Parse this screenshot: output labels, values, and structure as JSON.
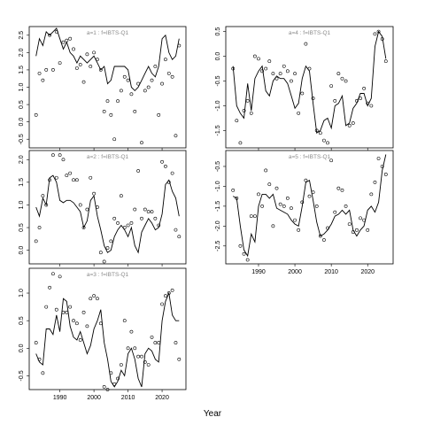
{
  "figure": {
    "xlabel": "Year"
  },
  "chart_data": [
    {
      "type": "line",
      "title": "a=1 : f=IBTS-Q1",
      "xlim": [
        1981,
        2027
      ],
      "ylim": [
        -0.75,
        2.75
      ],
      "x_ticks": [
        1990,
        2000,
        2010,
        2020
      ],
      "y_ticks": [
        -0.5,
        0.0,
        0.5,
        1.0,
        1.5,
        2.0,
        2.5
      ],
      "y_tick_labels": [
        "-0.5",
        "0.0",
        "0.5",
        "1.0",
        "1.5",
        "2.0",
        "2.5"
      ],
      "series": [
        {
          "style": "line",
          "x": [
            1983,
            1984,
            1985,
            1986,
            1987,
            1988,
            1989,
            1990,
            1991,
            1992,
            1993,
            1994,
            1995,
            1996,
            1997,
            1998,
            1999,
            2000,
            2001,
            2002,
            2003,
            2004,
            2005,
            2006,
            2007,
            2008,
            2009,
            2010,
            2011,
            2012,
            2013,
            2014,
            2015,
            2016,
            2017,
            2018,
            2019,
            2020,
            2021,
            2022,
            2023,
            2024,
            2025
          ],
          "y": [
            1.9,
            2.4,
            2.2,
            2.6,
            2.5,
            2.6,
            2.7,
            2.4,
            2.1,
            2.3,
            2.0,
            1.9,
            1.7,
            1.9,
            1.8,
            1.7,
            1.8,
            1.9,
            1.7,
            1.5,
            1.6,
            1.1,
            1.2,
            1.6,
            1.6,
            1.6,
            1.6,
            1.5,
            1.0,
            0.9,
            1.0,
            1.2,
            1.4,
            1.6,
            1.4,
            1.3,
            1.6,
            2.4,
            2.5,
            2.0,
            1.8,
            1.9,
            2.4
          ]
        },
        {
          "style": "points",
          "x": [
            1983,
            1984,
            1985,
            1986,
            1987,
            1988,
            1989,
            1990,
            1991,
            1992,
            1993,
            1994,
            1995,
            1996,
            1997,
            1998,
            1999,
            2000,
            2001,
            2002,
            2003,
            2004,
            2005,
            2006,
            2007,
            2008,
            2009,
            2010,
            2011,
            2012,
            2013,
            2014,
            2015,
            2016,
            2017,
            2018,
            2019,
            2020,
            2021,
            2022,
            2023,
            2024,
            2025
          ],
          "y": [
            0.2,
            1.4,
            1.2,
            1.5,
            2.5,
            1.5,
            2.6,
            1.7,
            2.3,
            2.35,
            2.4,
            2.1,
            1.55,
            1.65,
            1.15,
            1.95,
            1.6,
            2.0,
            1.8,
            1.5,
            0.3,
            0.6,
            0.2,
            -0.5,
            0.6,
            0.9,
            1.3,
            1.2,
            0.8,
            0.3,
            1.1,
            -0.6,
            0.9,
            1.0,
            1.2,
            1.6,
            0.2,
            1.1,
            1.8,
            1.4,
            1.3,
            -0.4,
            2.2
          ]
        }
      ]
    },
    {
      "type": "line",
      "title": "a=2 : f=IBTS-Q1",
      "xlim": [
        1981,
        2027
      ],
      "ylim": [
        -0.3,
        2.2
      ],
      "x_ticks": [
        1990,
        2000,
        2010,
        2020
      ],
      "y_ticks": [
        0.0,
        0.5,
        1.0,
        1.5,
        2.0
      ],
      "y_tick_labels": [
        "0.0",
        "0.5",
        "1.0",
        "1.5",
        "2.0"
      ],
      "series": [
        {
          "style": "line",
          "x": [
            1983,
            1984,
            1985,
            1986,
            1987,
            1988,
            1989,
            1990,
            1991,
            1992,
            1993,
            1994,
            1995,
            1996,
            1997,
            1998,
            1999,
            2000,
            2001,
            2002,
            2003,
            2004,
            2005,
            2006,
            2007,
            2008,
            2009,
            2010,
            2011,
            2012,
            2013,
            2014,
            2015,
            2016,
            2017,
            2018,
            2019,
            2020,
            2021,
            2022,
            2023,
            2024,
            2025
          ],
          "y": [
            0.95,
            0.75,
            1.15,
            1.0,
            1.6,
            1.65,
            1.5,
            1.1,
            1.05,
            1.1,
            1.1,
            1.05,
            0.95,
            0.85,
            0.5,
            0.65,
            1.1,
            1.2,
            0.75,
            0.45,
            0.1,
            -0.05,
            0.0,
            0.3,
            0.45,
            0.55,
            0.45,
            0.3,
            0.5,
            0.1,
            -0.05,
            0.4,
            0.55,
            0.7,
            0.6,
            0.45,
            0.5,
            0.8,
            1.45,
            1.55,
            1.3,
            1.15,
            0.75
          ]
        },
        {
          "style": "points",
          "x": [
            1983,
            1984,
            1985,
            1986,
            1987,
            1988,
            1989,
            1990,
            1991,
            1992,
            1993,
            1994,
            1995,
            1996,
            1997,
            1998,
            1999,
            2000,
            2001,
            2002,
            2003,
            2004,
            2005,
            2006,
            2007,
            2008,
            2009,
            2010,
            2011,
            2012,
            2013,
            2014,
            2015,
            2016,
            2017,
            2018,
            2019,
            2020,
            2021,
            2022,
            2023,
            2024,
            2025
          ],
          "y": [
            0.2,
            0.5,
            1.2,
            1.0,
            1.55,
            2.1,
            1.6,
            2.1,
            2.0,
            1.65,
            1.7,
            1.55,
            1.55,
            1.0,
            0.5,
            0.9,
            1.6,
            1.25,
            0.95,
            -0.05,
            -0.25,
            0.05,
            0.2,
            0.7,
            0.6,
            1.2,
            0.5,
            0.55,
            0.6,
            0.9,
            1.75,
            0.7,
            0.9,
            0.85,
            0.85,
            0.7,
            0.55,
            1.95,
            1.85,
            1.5,
            1.7,
            0.45,
            0.3
          ]
        }
      ]
    },
    {
      "type": "line",
      "title": "a=3 : f=IBTS-Q1",
      "xlim": [
        1981,
        2027
      ],
      "ylim": [
        -0.75,
        1.45
      ],
      "x_ticks": [
        1990,
        2000,
        2010,
        2020
      ],
      "y_ticks": [
        -0.5,
        0.0,
        0.5,
        1.0
      ],
      "y_tick_labels": [
        "-0.5",
        "0.0",
        "0.5",
        "1.0"
      ],
      "series": [
        {
          "style": "line",
          "x": [
            1983,
            1984,
            1985,
            1986,
            1987,
            1988,
            1989,
            1990,
            1991,
            1992,
            1993,
            1994,
            1995,
            1996,
            1997,
            1998,
            1999,
            2000,
            2001,
            2002,
            2003,
            2004,
            2005,
            2006,
            2007,
            2008,
            2009,
            2010,
            2011,
            2012,
            2013,
            2014,
            2015,
            2016,
            2017,
            2018,
            2019,
            2020,
            2021,
            2022,
            2023,
            2024,
            2025
          ],
          "y": [
            -0.1,
            -0.25,
            -0.3,
            0.35,
            0.35,
            0.25,
            0.6,
            0.3,
            0.9,
            0.85,
            0.4,
            0.2,
            0.15,
            0.3,
            0.1,
            -0.1,
            0.05,
            0.35,
            0.5,
            0.7,
            0.1,
            -0.2,
            -0.6,
            -0.7,
            -0.6,
            -0.4,
            -0.5,
            -0.1,
            0.0,
            -0.2,
            -0.55,
            -0.7,
            -0.1,
            0.0,
            -0.05,
            -0.2,
            -0.25,
            0.5,
            0.85,
            1.0,
            0.6,
            0.5,
            0.5
          ]
        },
        {
          "style": "points",
          "x": [
            1983,
            1984,
            1985,
            1986,
            1987,
            1988,
            1989,
            1990,
            1991,
            1992,
            1993,
            1994,
            1995,
            1996,
            1997,
            1998,
            1999,
            2000,
            2001,
            2002,
            2003,
            2004,
            2005,
            2006,
            2007,
            2008,
            2009,
            2010,
            2011,
            2012,
            2013,
            2014,
            2015,
            2016,
            2017,
            2018,
            2019,
            2020,
            2021,
            2022,
            2023,
            2024,
            2025
          ],
          "y": [
            0.1,
            -0.2,
            -0.45,
            0.75,
            1.1,
            1.35,
            0.7,
            1.3,
            0.65,
            0.65,
            0.75,
            0.5,
            0.45,
            0.15,
            0.65,
            0.4,
            0.9,
            0.95,
            0.9,
            0.45,
            -0.7,
            -0.75,
            -0.45,
            -0.65,
            -0.55,
            -0.3,
            0.5,
            0.0,
            0.3,
            0.0,
            -0.15,
            -0.15,
            -0.25,
            -0.3,
            0.2,
            0.1,
            0.1,
            0.8,
            0.95,
            1.0,
            1.05,
            0.1,
            -0.2
          ]
        }
      ]
    },
    {
      "type": "line",
      "title": "a=4 : f=IBTS-Q1",
      "xlim": [
        1981,
        2027
      ],
      "ylim": [
        -1.85,
        0.6
      ],
      "x_ticks": [
        1990,
        2000,
        2010,
        2020
      ],
      "y_ticks": [
        -1.5,
        -1.0,
        -0.5,
        0.0,
        0.5
      ],
      "y_tick_labels": [
        "-1.5",
        "-1.0",
        "-0.5",
        "0.0",
        "0.5"
      ],
      "series": [
        {
          "style": "line",
          "x": [
            1983,
            1984,
            1985,
            1986,
            1987,
            1988,
            1989,
            1990,
            1991,
            1992,
            1993,
            1994,
            1995,
            1996,
            1997,
            1998,
            1999,
            2000,
            2001,
            2002,
            2003,
            2004,
            2005,
            2006,
            2007,
            2008,
            2009,
            2010,
            2011,
            2012,
            2013,
            2014,
            2015,
            2016,
            2017,
            2018,
            2019,
            2020,
            2021,
            2022,
            2023,
            2024,
            2025
          ],
          "y": [
            -0.2,
            -1.0,
            -1.15,
            -1.25,
            -0.55,
            -1.1,
            -0.45,
            -0.3,
            -0.2,
            -0.7,
            -0.8,
            -0.5,
            -0.4,
            -0.45,
            -0.45,
            -0.55,
            -0.8,
            -1.05,
            -0.95,
            -0.45,
            -0.2,
            -0.3,
            -0.95,
            -1.55,
            -1.5,
            -1.3,
            -1.25,
            -1.45,
            -1.0,
            -0.95,
            -0.8,
            -1.4,
            -1.35,
            -1.05,
            -0.95,
            -0.75,
            -0.75,
            -1.0,
            -0.85,
            0.2,
            0.5,
            0.4,
            -0.05
          ]
        },
        {
          "style": "points",
          "x": [
            1983,
            1984,
            1985,
            1986,
            1987,
            1988,
            1989,
            1990,
            1991,
            1992,
            1993,
            1994,
            1995,
            1996,
            1997,
            1998,
            1999,
            2000,
            2001,
            2002,
            2003,
            2004,
            2005,
            2006,
            2007,
            2008,
            2009,
            2010,
            2011,
            2012,
            2013,
            2014,
            2015,
            2016,
            2017,
            2018,
            2019,
            2020,
            2021,
            2022,
            2023,
            2024,
            2025
          ],
          "y": [
            -0.25,
            -1.3,
            -1.75,
            -1.1,
            -0.9,
            -1.15,
            0.0,
            -0.05,
            -0.3,
            -0.25,
            -0.1,
            -0.35,
            -0.45,
            -0.35,
            -0.2,
            -0.3,
            -0.5,
            -0.35,
            -1.15,
            -0.75,
            0.25,
            -0.25,
            -0.85,
            -1.5,
            -1.55,
            -1.7,
            -1.75,
            -0.6,
            -0.9,
            -0.35,
            -0.45,
            -0.5,
            -1.4,
            -1.35,
            -0.9,
            -0.85,
            -0.65,
            -0.95,
            -1.0,
            0.45,
            0.5,
            0.35,
            -0.1
          ]
        }
      ]
    },
    {
      "type": "line",
      "title": "a=5 : f=IBTS-Q1",
      "xlim": [
        1981,
        2027
      ],
      "ylim": [
        -2.95,
        -0.1
      ],
      "x_ticks": [
        1990,
        2000,
        2010,
        2020
      ],
      "y_ticks": [
        -2.5,
        -2.0,
        -1.5,
        -1.0,
        -0.5
      ],
      "y_tick_labels": [
        "-2.5",
        "-2.0",
        "-1.5",
        "-1.0",
        "-0.5"
      ],
      "series": [
        {
          "style": "line",
          "x": [
            1983,
            1984,
            1985,
            1986,
            1987,
            1988,
            1989,
            1990,
            1991,
            1992,
            1993,
            1994,
            1995,
            1996,
            1997,
            1998,
            1999,
            2000,
            2001,
            2002,
            2003,
            2004,
            2005,
            2006,
            2007,
            2008,
            2009,
            2010,
            2011,
            2012,
            2013,
            2014,
            2015,
            2016,
            2017,
            2018,
            2019,
            2020,
            2021,
            2022,
            2023,
            2024,
            2025
          ],
          "y": [
            -1.25,
            -1.3,
            -2.0,
            -2.6,
            -2.75,
            -2.2,
            -2.4,
            -1.5,
            -1.2,
            -1.2,
            -1.3,
            -1.2,
            -1.55,
            -1.6,
            -1.65,
            -1.7,
            -1.85,
            -1.95,
            -2.0,
            -1.5,
            -0.9,
            -0.85,
            -1.35,
            -1.9,
            -2.25,
            -2.2,
            -2.1,
            -1.95,
            -1.75,
            -1.7,
            -1.6,
            -1.7,
            -1.6,
            -2.1,
            -2.25,
            -2.1,
            -2.0,
            -1.6,
            -1.5,
            -1.65,
            -1.4,
            -0.6,
            -0.2
          ]
        },
        {
          "style": "points",
          "x": [
            1983,
            1984,
            1985,
            1986,
            1987,
            1988,
            1989,
            1990,
            1991,
            1992,
            1993,
            1994,
            1995,
            1996,
            1997,
            1998,
            1999,
            2000,
            2001,
            2002,
            2003,
            2004,
            2005,
            2006,
            2007,
            2008,
            2009,
            2010,
            2011,
            2012,
            2013,
            2014,
            2015,
            2016,
            2017,
            2018,
            2019,
            2020,
            2021,
            2022,
            2023,
            2024,
            2025
          ],
          "y": [
            -1.1,
            -1.3,
            -2.5,
            -2.7,
            -2.85,
            -1.75,
            -1.75,
            -1.2,
            -1.5,
            -0.6,
            -0.95,
            -2.0,
            -1.05,
            -1.45,
            -1.5,
            -1.3,
            -1.55,
            -1.85,
            -2.1,
            -1.4,
            -0.85,
            -1.25,
            -1.15,
            -1.5,
            -2.25,
            -2.35,
            -2.05,
            -0.35,
            -1.65,
            -1.05,
            -1.1,
            -1.5,
            -1.95,
            -2.15,
            -2.1,
            -1.8,
            -1.85,
            -2.1,
            -1.2,
            -0.9,
            -0.3,
            -0.5,
            -0.7
          ]
        }
      ]
    }
  ]
}
